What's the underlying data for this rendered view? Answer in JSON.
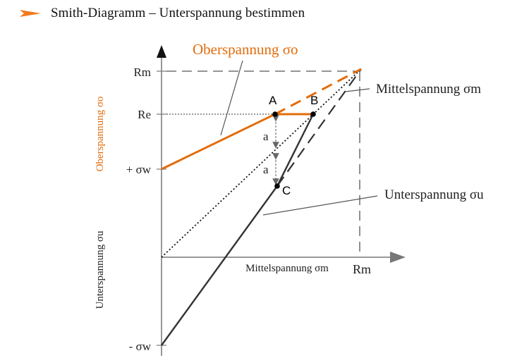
{
  "header": {
    "title": "Smith-Diagramm – Unterspannung bestimmen",
    "accent_color": "#F07B1E",
    "icon": "orange-arrow-icon"
  },
  "diagram": {
    "colors": {
      "orange": "#E36C0A",
      "dark": "#222222",
      "gray": "#555555"
    },
    "y_axis_upper_label": "Oberspannung σo",
    "y_axis_lower_label": "Unterspannung σu",
    "x_axis_label": "Mittelspannung σm",
    "x_axis_end_label": "Rm",
    "tick_rm": "Rm",
    "tick_re": "Re",
    "tick_plus_sigma_w": "+ σw",
    "tick_minus_sigma_w": "- σw",
    "callout_oberspannung": "Oberspannung σo",
    "callout_mittelspannung": "Mittelspannung σm",
    "callout_unterspannung": "Unterspannung σu",
    "point_a": "A",
    "point_b": "B",
    "point_c": "C",
    "distance_label_upper": "a",
    "distance_label_lower": "a"
  }
}
